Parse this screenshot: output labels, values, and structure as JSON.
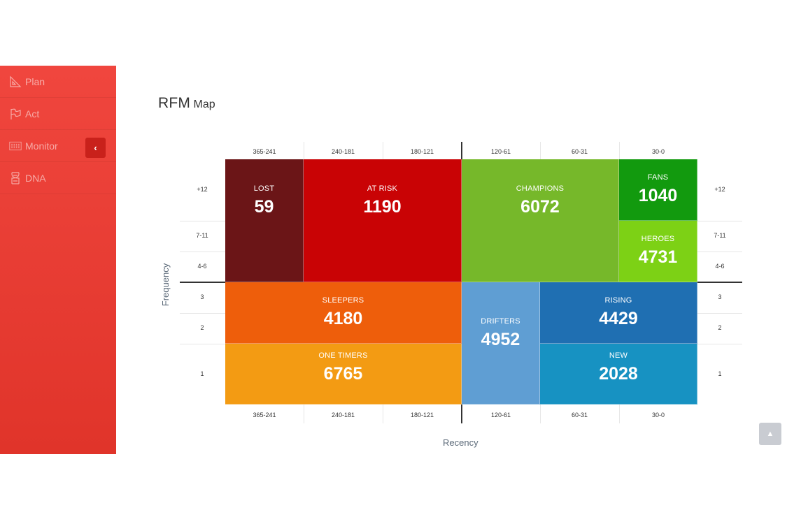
{
  "sidebar": {
    "items": [
      {
        "label": "Plan",
        "icon": "triangle-ruler-icon"
      },
      {
        "label": "Act",
        "icon": "flag-icon"
      },
      {
        "label": "Monitor",
        "icon": "grid-dots-icon"
      },
      {
        "label": "DNA",
        "icon": "dna-icon"
      }
    ],
    "collapse_glyph": "‹"
  },
  "title": {
    "main": "RFM",
    "sub": "Map"
  },
  "chart_data": {
    "type": "heatmap",
    "title": "RFM Map",
    "xlabel": "Recency",
    "ylabel": "Frequency",
    "x_categories": [
      "365-241",
      "240-181",
      "180-121",
      "120-61",
      "60-31",
      "30-0"
    ],
    "y_categories": [
      "+12",
      "7-11",
      "4-6",
      "3",
      "2",
      "1"
    ],
    "segments": [
      {
        "name": "LOST",
        "value": 59,
        "color": "#6b1517"
      },
      {
        "name": "AT RISK",
        "value": 1190,
        "color": "#c90305"
      },
      {
        "name": "CHAMPIONS",
        "value": 6072,
        "color": "#76b82a"
      },
      {
        "name": "FANS",
        "value": 1040,
        "color": "#129a0e"
      },
      {
        "name": "HEROES",
        "value": 4731,
        "color": "#7dd115"
      },
      {
        "name": "SLEEPERS",
        "value": 4180,
        "color": "#ee5e0b"
      },
      {
        "name": "ONE TIMERS",
        "value": 6765,
        "color": "#f39b13"
      },
      {
        "name": "DRIFTERS",
        "value": 4952,
        "color": "#5f9ed3"
      },
      {
        "name": "RISING",
        "value": 4429,
        "color": "#1f6fb2"
      },
      {
        "name": "NEW",
        "value": 2028,
        "color": "#1792c2"
      }
    ]
  },
  "scroll_top_glyph": "▲"
}
